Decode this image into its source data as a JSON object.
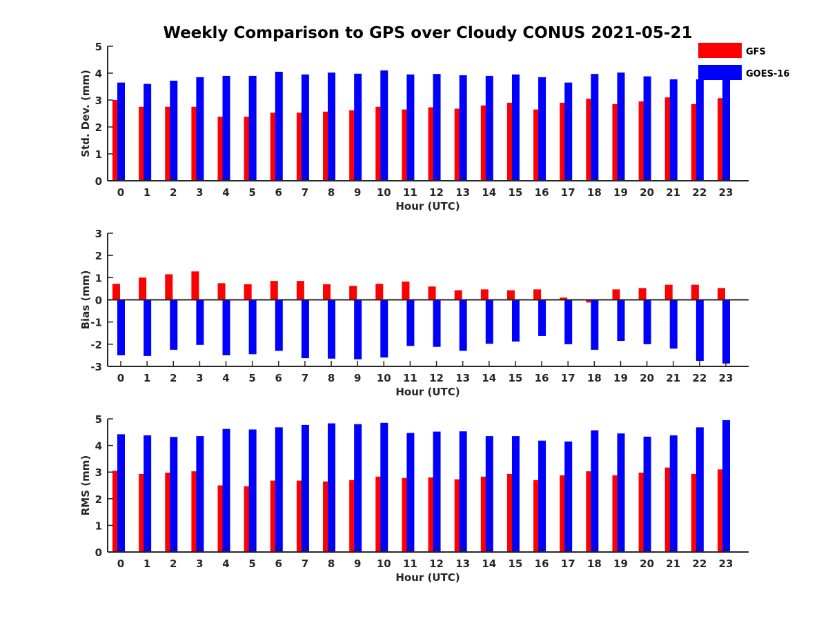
{
  "chart_data": {
    "title": "Weekly Comparison to GPS over Cloudy CONUS 2021-05-21",
    "type": "bar",
    "legend": {
      "placement": "top-right",
      "entries": [
        {
          "name": "GFS",
          "color": "#ff0000"
        },
        {
          "name": "GOES-16",
          "color": "#0000ff"
        }
      ]
    },
    "categories": [
      "0",
      "1",
      "2",
      "3",
      "4",
      "5",
      "6",
      "7",
      "8",
      "9",
      "10",
      "11",
      "12",
      "13",
      "14",
      "15",
      "16",
      "17",
      "18",
      "19",
      "20",
      "21",
      "22",
      "23"
    ],
    "panels": [
      {
        "ylabel": "Std. Dev. (mm)",
        "xlabel": "Hour (UTC)",
        "ylim": [
          0,
          5
        ],
        "yticks": [
          "0",
          "1",
          "2",
          "3",
          "4",
          "5"
        ],
        "series": [
          {
            "name": "GFS",
            "color": "#ff0000",
            "values": [
              3.0,
              2.75,
              2.75,
              2.75,
              2.38,
              2.38,
              2.53,
              2.53,
              2.57,
              2.62,
              2.75,
              2.65,
              2.73,
              2.68,
              2.8,
              2.9,
              2.65,
              2.9,
              3.05,
              2.85,
              2.95,
              3.1,
              2.85,
              3.07
            ]
          },
          {
            "name": "GOES-16",
            "color": "#0000ff",
            "values": [
              3.65,
              3.6,
              3.72,
              3.85,
              3.9,
              3.9,
              4.05,
              3.95,
              4.02,
              3.98,
              4.1,
              3.95,
              3.97,
              3.92,
              3.9,
              3.95,
              3.85,
              3.65,
              3.97,
              4.02,
              3.88,
              3.77,
              3.77,
              3.85
            ]
          }
        ]
      },
      {
        "ylabel": "Bias (mm)",
        "xlabel": "Hour (UTC)",
        "ylim": [
          -3,
          3
        ],
        "yticks": [
          "-3",
          "-2",
          "-1",
          "0",
          "1",
          "2",
          "3"
        ],
        "series": [
          {
            "name": "GFS",
            "color": "#ff0000",
            "values": [
              0.72,
              1.0,
              1.15,
              1.28,
              0.75,
              0.7,
              0.85,
              0.85,
              0.7,
              0.63,
              0.72,
              0.82,
              0.6,
              0.43,
              0.47,
              0.43,
              0.47,
              0.1,
              -0.12,
              0.47,
              0.53,
              0.68,
              0.68,
              0.53
            ]
          },
          {
            "name": "GOES-16",
            "color": "#0000ff",
            "values": [
              -2.5,
              -2.53,
              -2.25,
              -2.03,
              -2.5,
              -2.45,
              -2.3,
              -2.63,
              -2.65,
              -2.68,
              -2.6,
              -2.08,
              -2.12,
              -2.3,
              -1.98,
              -1.88,
              -1.63,
              -2.0,
              -2.25,
              -1.85,
              -2.0,
              -2.2,
              -2.75,
              -2.87
            ]
          }
        ]
      },
      {
        "ylabel": "RMS (mm)",
        "xlabel": "Hour (UTC)",
        "ylim": [
          0,
          5
        ],
        "yticks": [
          "0",
          "1",
          "2",
          "3",
          "4",
          "5"
        ],
        "series": [
          {
            "name": "GFS",
            "color": "#ff0000",
            "values": [
              3.05,
              2.93,
              2.98,
              3.03,
              2.5,
              2.47,
              2.68,
              2.68,
              2.65,
              2.7,
              2.83,
              2.78,
              2.8,
              2.73,
              2.83,
              2.93,
              2.7,
              2.88,
              3.03,
              2.88,
              2.98,
              3.17,
              2.93,
              3.1
            ]
          },
          {
            "name": "GOES-16",
            "color": "#0000ff",
            "values": [
              4.42,
              4.38,
              4.32,
              4.35,
              4.62,
              4.6,
              4.68,
              4.77,
              4.83,
              4.8,
              4.85,
              4.47,
              4.52,
              4.53,
              4.35,
              4.35,
              4.18,
              4.15,
              4.57,
              4.45,
              4.33,
              4.38,
              4.68,
              4.95
            ]
          }
        ]
      }
    ]
  }
}
